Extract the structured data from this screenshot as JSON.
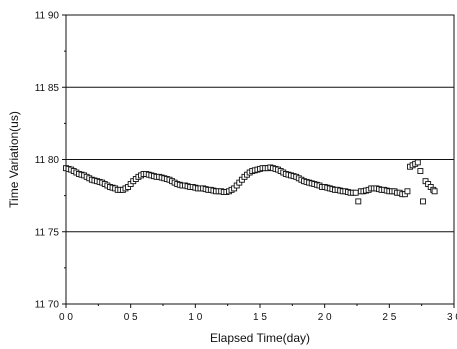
{
  "chart_data": {
    "type": "scatter",
    "xlabel": "Elapsed Time(day)",
    "ylabel": "Time Variation(us)",
    "xlim": [
      0.0,
      3.0
    ],
    "ylim": [
      1170,
      1190
    ],
    "x_ticks": [
      {
        "value": 0.0,
        "label": "0 0"
      },
      {
        "value": 0.5,
        "label": "0 5"
      },
      {
        "value": 1.0,
        "label": "1 0"
      },
      {
        "value": 1.5,
        "label": "1 5"
      },
      {
        "value": 2.0,
        "label": "2 0"
      },
      {
        "value": 2.5,
        "label": "2 5"
      },
      {
        "value": 3.0,
        "label": "3 0"
      }
    ],
    "y_ticks": [
      {
        "value": 1170,
        "label": "11 70"
      },
      {
        "value": 1175,
        "label": "11 75"
      },
      {
        "value": 1180,
        "label": "11 80"
      },
      {
        "value": 1185,
        "label": "11 85"
      },
      {
        "value": 1190,
        "label": "11 90"
      }
    ],
    "grid_lines_y": [
      1175,
      1180,
      1185
    ],
    "marker": "open-square",
    "series": [
      {
        "x": [
          0.0,
          0.02,
          0.04,
          0.06,
          0.08,
          0.1,
          0.12,
          0.14,
          0.16,
          0.18,
          0.2,
          0.22,
          0.24,
          0.26,
          0.28,
          0.3,
          0.32,
          0.34,
          0.36,
          0.38,
          0.4,
          0.42,
          0.44,
          0.46,
          0.48,
          0.5,
          0.52,
          0.54,
          0.56,
          0.58,
          0.6,
          0.62,
          0.64,
          0.66,
          0.68,
          0.7,
          0.72,
          0.74,
          0.76,
          0.78,
          0.8,
          0.82,
          0.84,
          0.86,
          0.88,
          0.9,
          0.92,
          0.94,
          0.96,
          0.98,
          1.0,
          1.02,
          1.04,
          1.06,
          1.08,
          1.1,
          1.12,
          1.14,
          1.16,
          1.18,
          1.2,
          1.22,
          1.24,
          1.26,
          1.28,
          1.3,
          1.32,
          1.34,
          1.36,
          1.38,
          1.4,
          1.42,
          1.44,
          1.46,
          1.48,
          1.5,
          1.52,
          1.54,
          1.56,
          1.58,
          1.6,
          1.62,
          1.64,
          1.66,
          1.68,
          1.7,
          1.72,
          1.74,
          1.76,
          1.78,
          1.8,
          1.82,
          1.84,
          1.86,
          1.88,
          1.9,
          1.92,
          1.94,
          1.96,
          1.98,
          2.0,
          2.02,
          2.04,
          2.06,
          2.08,
          2.1,
          2.12,
          2.14,
          2.16,
          2.18,
          2.2,
          2.22,
          2.24,
          2.26,
          2.28,
          2.3,
          2.32,
          2.34,
          2.36,
          2.38,
          2.4,
          2.42,
          2.44,
          2.46,
          2.48,
          2.5,
          2.52,
          2.54,
          2.56,
          2.58,
          2.6,
          2.62,
          2.64,
          2.66,
          2.68,
          2.7,
          2.72,
          2.74,
          2.76,
          2.78,
          2.8,
          2.82,
          2.84,
          2.85
        ],
        "y": [
          1179.4,
          1179.35,
          1179.3,
          1179.2,
          1179.1,
          1179.0,
          1178.95,
          1178.9,
          1178.8,
          1178.7,
          1178.6,
          1178.55,
          1178.5,
          1178.45,
          1178.4,
          1178.3,
          1178.2,
          1178.1,
          1178.05,
          1178.0,
          1177.9,
          1177.9,
          1177.9,
          1178.0,
          1178.1,
          1178.3,
          1178.5,
          1178.65,
          1178.8,
          1178.9,
          1179.0,
          1179.0,
          1178.95,
          1178.9,
          1178.85,
          1178.8,
          1178.8,
          1178.75,
          1178.7,
          1178.65,
          1178.6,
          1178.5,
          1178.4,
          1178.3,
          1178.25,
          1178.2,
          1178.2,
          1178.15,
          1178.1,
          1178.1,
          1178.05,
          1178.0,
          1178.0,
          1178.0,
          1177.95,
          1177.9,
          1177.9,
          1177.85,
          1177.8,
          1177.8,
          1177.8,
          1177.75,
          1177.75,
          1177.8,
          1177.9,
          1178.0,
          1178.2,
          1178.4,
          1178.6,
          1178.8,
          1178.95,
          1179.1,
          1179.2,
          1179.25,
          1179.3,
          1179.35,
          1179.4,
          1179.4,
          1179.4,
          1179.45,
          1179.4,
          1179.35,
          1179.3,
          1179.2,
          1179.1,
          1179.0,
          1178.95,
          1178.9,
          1178.85,
          1178.8,
          1178.7,
          1178.6,
          1178.5,
          1178.45,
          1178.4,
          1178.35,
          1178.3,
          1178.25,
          1178.2,
          1178.1,
          1178.1,
          1178.05,
          1178.0,
          1177.95,
          1177.9,
          1177.9,
          1177.85,
          1177.8,
          1177.8,
          1177.75,
          1177.7,
          1177.7,
          1177.7,
          1177.1,
          1177.8,
          1177.8,
          1177.85,
          1177.9,
          1178.0,
          1178.0,
          1178.0,
          1177.95,
          1177.9,
          1177.9,
          1177.85,
          1177.8,
          1177.8,
          1177.8,
          1177.7,
          1177.7,
          1177.6,
          1177.6,
          1177.8,
          1179.5,
          1179.6,
          1179.7,
          1179.8,
          1179.2,
          1177.1,
          1178.5,
          1178.3,
          1178.1,
          1177.9,
          1177.8
        ]
      }
    ]
  }
}
